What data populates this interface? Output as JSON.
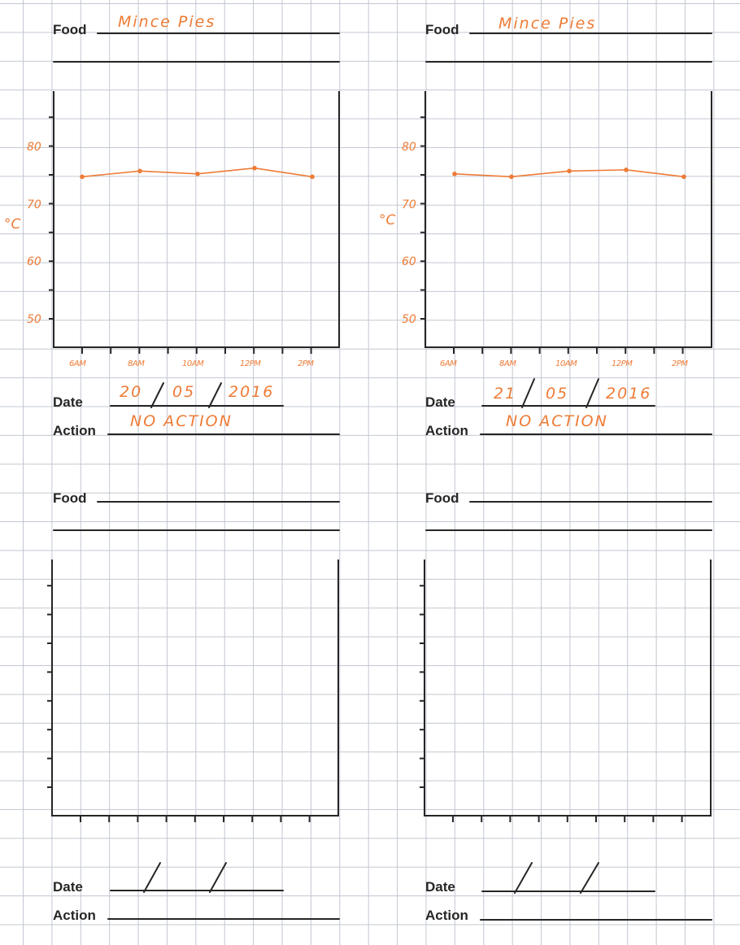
{
  "labels": {
    "food": "Food",
    "date": "Date",
    "action": "Action"
  },
  "colors": {
    "ink": "#262626",
    "handwriting": "#ee7b36",
    "grid": "#c3c7d2"
  },
  "logs": [
    {
      "food": "Mince Pies",
      "date": {
        "day": "20",
        "month": "05",
        "year": "2016"
      },
      "action": "NO ACTION",
      "chart_data": {
        "type": "line",
        "ylabel": "°C",
        "ylim": [
          45,
          90
        ],
        "yticks": [
          "80",
          "70",
          "60",
          "50"
        ],
        "categories": [
          "6AM",
          "8AM",
          "10AM",
          "12PM",
          "2PM"
        ],
        "values": [
          75.0,
          76.0,
          75.5,
          76.5,
          75.0
        ]
      }
    },
    {
      "food": "Mince Pies",
      "date": {
        "day": "21",
        "month": "05",
        "year": "2016"
      },
      "action": "NO ACTION",
      "chart_data": {
        "type": "line",
        "ylabel": "°C",
        "ylim": [
          45,
          90
        ],
        "yticks": [
          "80",
          "70",
          "60",
          "50"
        ],
        "categories": [
          "6AM",
          "8AM",
          "10AM",
          "12PM",
          "2PM"
        ],
        "values": [
          75.5,
          75.0,
          76.0,
          76.2,
          75.0
        ]
      }
    },
    {
      "food": "",
      "date": {
        "day": "",
        "month": "",
        "year": ""
      },
      "action": "",
      "chart_data": {
        "type": "line",
        "categories": [],
        "values": []
      }
    },
    {
      "food": "",
      "date": {
        "day": "",
        "month": "",
        "year": ""
      },
      "action": "",
      "chart_data": {
        "type": "line",
        "categories": [],
        "values": []
      }
    }
  ]
}
